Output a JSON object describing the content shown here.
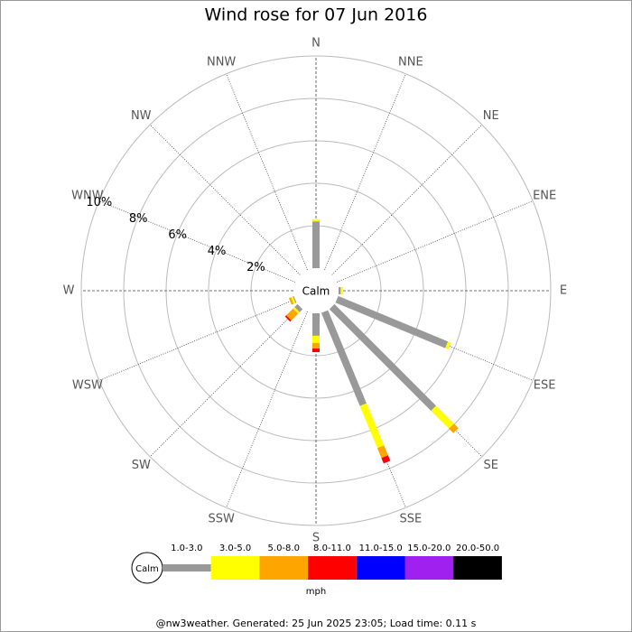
{
  "chart_data": {
    "type": "windrose",
    "title": "Wind rose for 07 Jun 2016",
    "directions": [
      "N",
      "NNE",
      "NE",
      "ENE",
      "E",
      "ESE",
      "SE",
      "SSE",
      "S",
      "SSW",
      "SW",
      "WSW",
      "W",
      "WNW",
      "NW",
      "NNW"
    ],
    "series": [
      {
        "name": "1.0-3.0",
        "color": "#999999",
        "values": [
          2.2,
          0,
          0,
          0,
          0.1,
          5.6,
          6.77,
          4.75,
          1.06,
          0,
          0.2,
          0.05,
          0,
          0,
          0,
          0
        ]
      },
      {
        "name": "3.0-5.0",
        "color": "#ffff00",
        "values": [
          0.1,
          0,
          0,
          0,
          0.1,
          0.15,
          1.19,
          2.15,
          0.34,
          0,
          0.1,
          0.1,
          0,
          0,
          0,
          0
        ]
      },
      {
        "name": "5.0-8.0",
        "color": "#ffa500",
        "values": [
          0,
          0,
          0,
          0,
          0,
          0,
          0.3,
          0.5,
          0.26,
          0,
          0.45,
          0.1,
          0,
          0,
          0,
          0
        ]
      },
      {
        "name": "8.0-11.0",
        "color": "#ff0000",
        "values": [
          0,
          0,
          0,
          0,
          0,
          0,
          0,
          0.28,
          0.17,
          0,
          0.08,
          0,
          0,
          0,
          0,
          0
        ]
      },
      {
        "name": "11.0-15.0",
        "color": "#0000ff",
        "values": [
          0,
          0,
          0,
          0,
          0,
          0,
          0,
          0,
          0,
          0,
          0,
          0,
          0,
          0,
          0,
          0
        ]
      },
      {
        "name": "15.0-20.0",
        "color": "#a020f0",
        "values": [
          0,
          0,
          0,
          0,
          0,
          0,
          0,
          0,
          0,
          0,
          0,
          0,
          0,
          0,
          0,
          0
        ]
      },
      {
        "name": "20.0-50.0",
        "color": "#000000",
        "values": [
          0,
          0,
          0,
          0,
          0,
          0,
          0,
          0,
          0,
          0,
          0,
          0,
          0,
          0,
          0,
          0
        ]
      }
    ],
    "rlim": [
      0,
      10
    ],
    "rticks": [
      {
        "value": 2,
        "label": "2%"
      },
      {
        "value": 4,
        "label": "4%"
      },
      {
        "value": 6,
        "label": "6%"
      },
      {
        "value": 8,
        "label": "8%"
      },
      {
        "value": 10,
        "label": "10%"
      }
    ],
    "calm_label": "Calm",
    "legend_unit": "mph",
    "footer": "@nw3weather. Generated: 25 Jun 2025 23:05; Load time: 0.11 s"
  }
}
